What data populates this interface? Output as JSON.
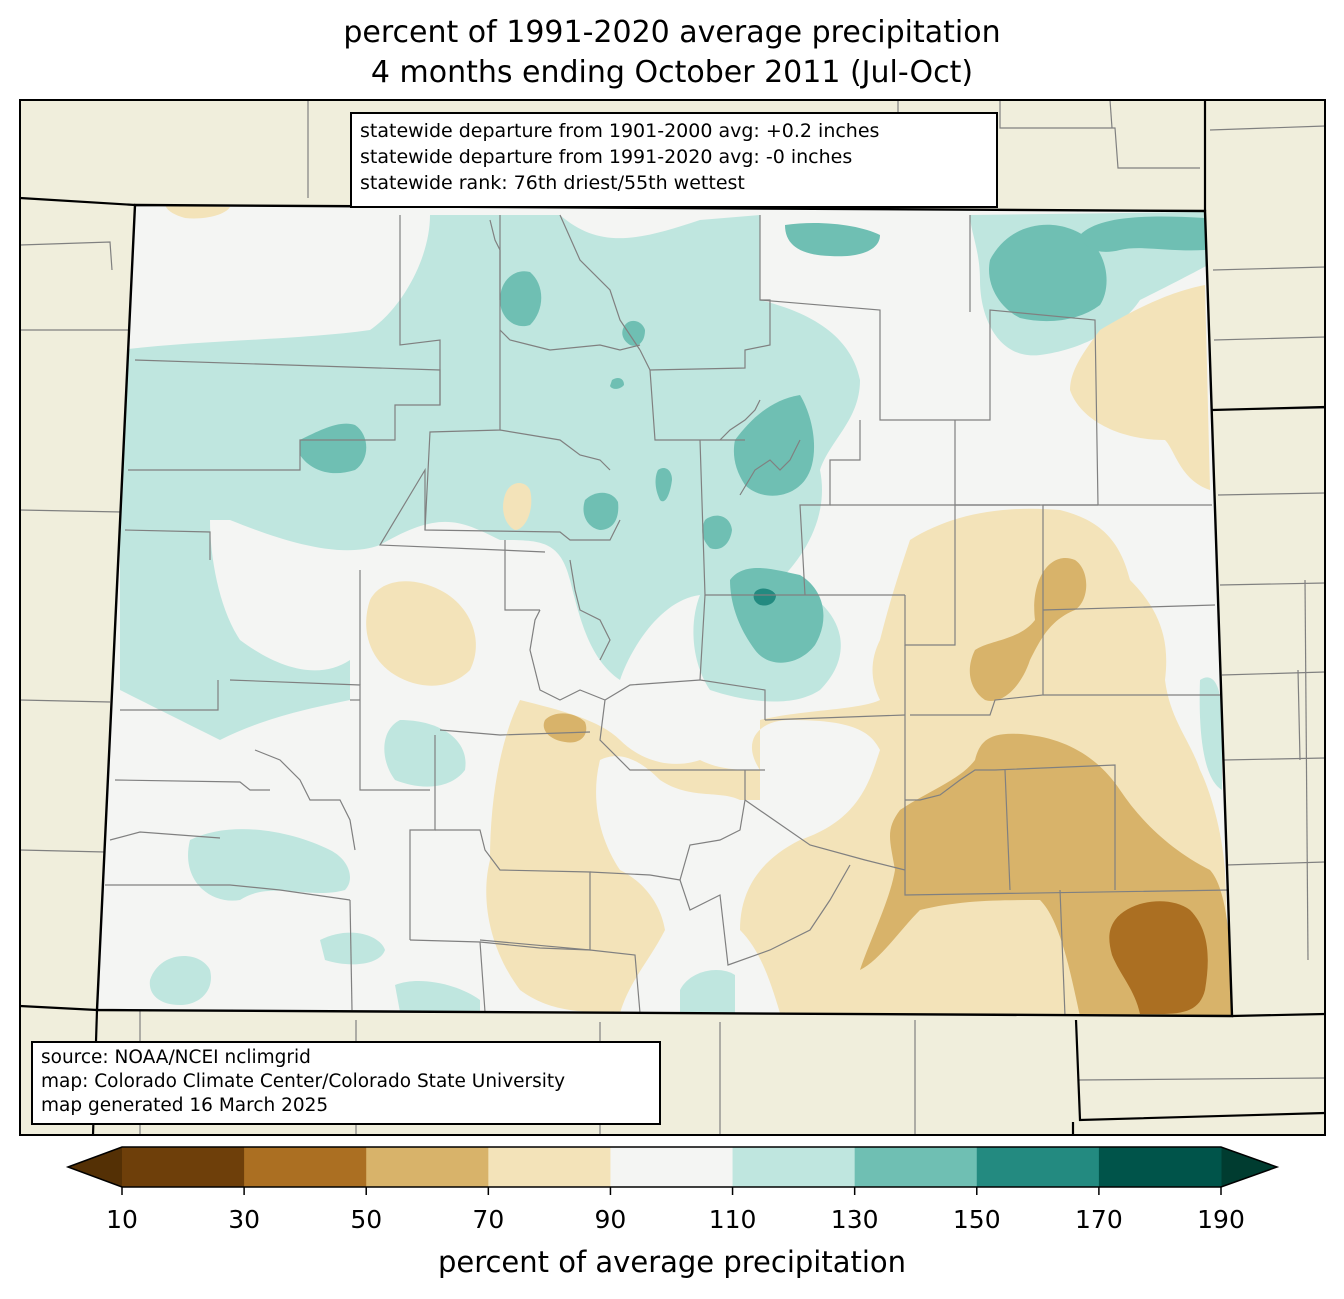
{
  "title": {
    "line1": "percent of 1991-2020 average precipitation",
    "line2": "4 months ending October 2011 (Jul-Oct)"
  },
  "stats_box": {
    "lines": [
      "statewide departure from 1901-2000 avg: +0.2 inches",
      "statewide departure from 1991-2020 avg: -0 inches",
      "statewide rank: 76th driest/55th wettest"
    ]
  },
  "source_box": {
    "lines": [
      "source: NOAA/NCEI nclimgrid",
      "map: Colorado Climate Center/Colorado State University",
      "map generated 16 March 2025"
    ]
  },
  "colorbar": {
    "label": "percent of average precipitation",
    "ticks": [
      "10",
      "30",
      "50",
      "70",
      "90",
      "110",
      "130",
      "150",
      "170",
      "190"
    ],
    "under_color": "#543005",
    "over_color": "#003c30",
    "colors": [
      "#6e3f0a",
      "#ab6f22",
      "#d8b36a",
      "#f3e3b9",
      "#f4f5f3",
      "#bfe6df",
      "#6fbfb3",
      "#238a80",
      "#00544a"
    ]
  },
  "map_colors": {
    "land": "#f0eedc",
    "state_border": "#000000",
    "county_border": "#808080"
  }
}
